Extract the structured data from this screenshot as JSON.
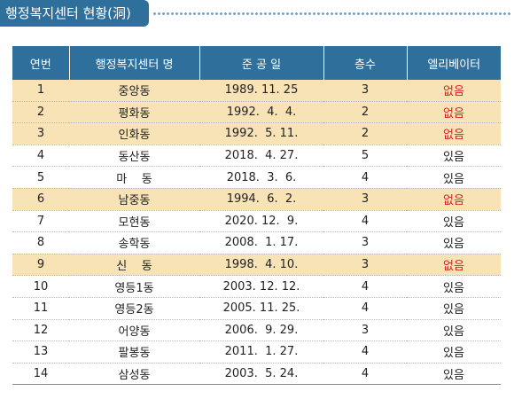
{
  "title": "행정복지센터 현황(洞)",
  "table": {
    "headers": [
      "연번",
      "행정복지센터 명",
      "준 공 일",
      "층수",
      "엘리베이터"
    ],
    "rows": [
      {
        "no": "1",
        "name": "중앙동",
        "date": "1989. 11. 25",
        "floors": "3",
        "elevator": "없음",
        "highlight": true
      },
      {
        "no": "2",
        "name": "평화동",
        "date": "1992.  4.  4.",
        "floors": "2",
        "elevator": "없음",
        "highlight": true
      },
      {
        "no": "3",
        "name": "인화동",
        "date": "1992.  5. 11.",
        "floors": "2",
        "elevator": "없음",
        "highlight": true
      },
      {
        "no": "4",
        "name": "동산동",
        "date": "2018.  4. 27.",
        "floors": "5",
        "elevator": "있음",
        "highlight": false
      },
      {
        "no": "5",
        "name": "마    동",
        "date": "2018.  3.  6.",
        "floors": "4",
        "elevator": "있음",
        "highlight": false
      },
      {
        "no": "6",
        "name": "남중동",
        "date": "1994.  6.  2.",
        "floors": "3",
        "elevator": "없음",
        "highlight": true
      },
      {
        "no": "7",
        "name": "모현동",
        "date": "2020. 12.  9.",
        "floors": "4",
        "elevator": "있음",
        "highlight": false
      },
      {
        "no": "8",
        "name": "송학동",
        "date": "2008.  1. 17.",
        "floors": "3",
        "elevator": "있음",
        "highlight": false
      },
      {
        "no": "9",
        "name": "신    동",
        "date": "1998.  4. 10.",
        "floors": "3",
        "elevator": "없음",
        "highlight": true
      },
      {
        "no": "10",
        "name": "영등1동",
        "date": "2003. 12. 12.",
        "floors": "4",
        "elevator": "있음",
        "highlight": false
      },
      {
        "no": "11",
        "name": "영등2동",
        "date": "2005. 11. 25.",
        "floors": "4",
        "elevator": "있음",
        "highlight": false
      },
      {
        "no": "12",
        "name": "어양동",
        "date": "2006.  9. 29.",
        "floors": "3",
        "elevator": "있음",
        "highlight": false
      },
      {
        "no": "13",
        "name": "팔봉동",
        "date": "2011.  1. 27.",
        "floors": "4",
        "elevator": "있음",
        "highlight": false
      },
      {
        "no": "14",
        "name": "삼성동",
        "date": "2003.  5. 24.",
        "floors": "4",
        "elevator": "있음",
        "highlight": false
      }
    ]
  },
  "colors": {
    "header": "#2f6f9b",
    "highlight_row": "#f7e3b5",
    "no_elevator_text": "#e0201e"
  }
}
